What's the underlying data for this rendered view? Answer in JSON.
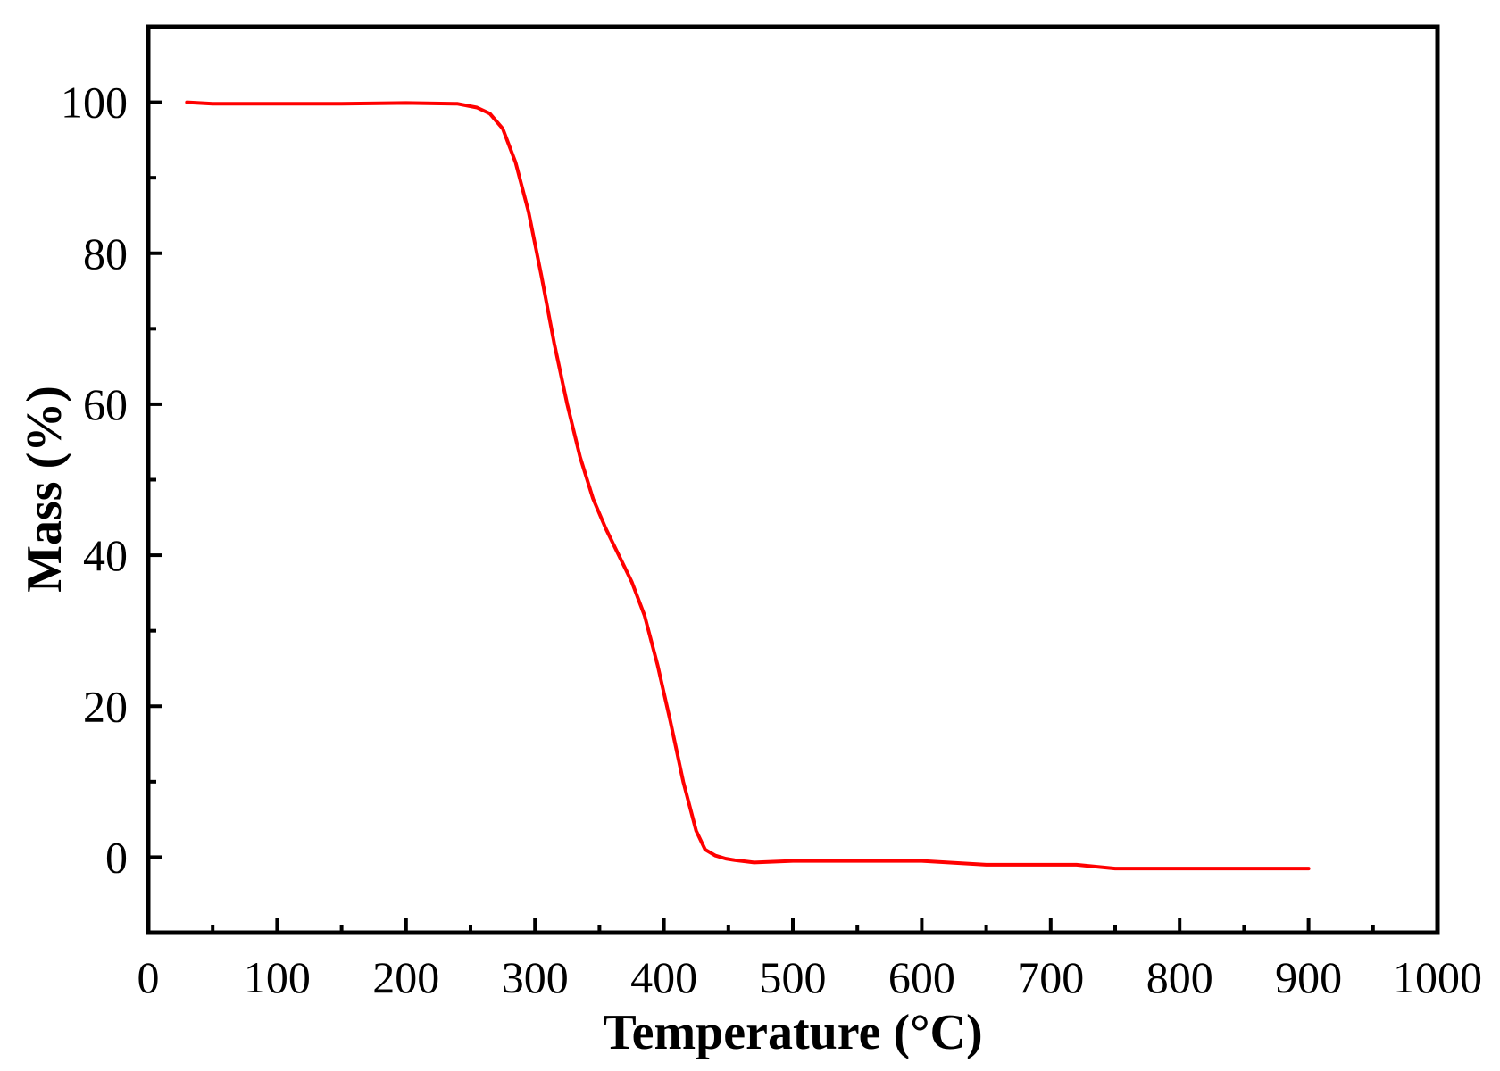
{
  "chart_data": {
    "type": "line",
    "title": "",
    "xlabel": "Temperature (°C)",
    "ylabel": "Mass (%)",
    "xlim": [
      0,
      1000
    ],
    "ylim": [
      -10,
      110
    ],
    "x_ticks": [
      0,
      100,
      200,
      300,
      400,
      500,
      600,
      700,
      800,
      900,
      1000
    ],
    "x_tick_labels": [
      "0",
      "100",
      "200",
      "300",
      "400",
      "500",
      "600",
      "700",
      "800",
      "900",
      "1000"
    ],
    "y_ticks": [
      0,
      20,
      40,
      60,
      80,
      100
    ],
    "y_tick_labels": [
      "0",
      "20",
      "40",
      "60",
      "80",
      "100"
    ],
    "grid": false,
    "legend": "none",
    "colors": {
      "series": "#ff0000",
      "axes": "#000000"
    },
    "series": [
      {
        "x": [
          30,
          50,
          100,
          150,
          200,
          240,
          255,
          265,
          275,
          285,
          295,
          305,
          315,
          325,
          335,
          345,
          355,
          365,
          375,
          385,
          395,
          405,
          415,
          425,
          432,
          440,
          448,
          455,
          460,
          470,
          500,
          550,
          600,
          650,
          700,
          720,
          750,
          780,
          800,
          850,
          900
        ],
        "y": [
          100,
          99.8,
          99.8,
          99.8,
          99.9,
          99.8,
          99.3,
          98.5,
          96.5,
          92,
          85.5,
          77,
          68,
          60,
          53,
          47.5,
          43.5,
          40,
          36.5,
          32,
          25.5,
          18,
          10,
          3.5,
          1,
          0.2,
          -0.2,
          -0.4,
          -0.5,
          -0.7,
          -0.5,
          -0.5,
          -0.5,
          -1,
          -1,
          -1,
          -1.5,
          -1.5,
          -1.5,
          -1.5,
          -1.5
        ]
      }
    ]
  }
}
